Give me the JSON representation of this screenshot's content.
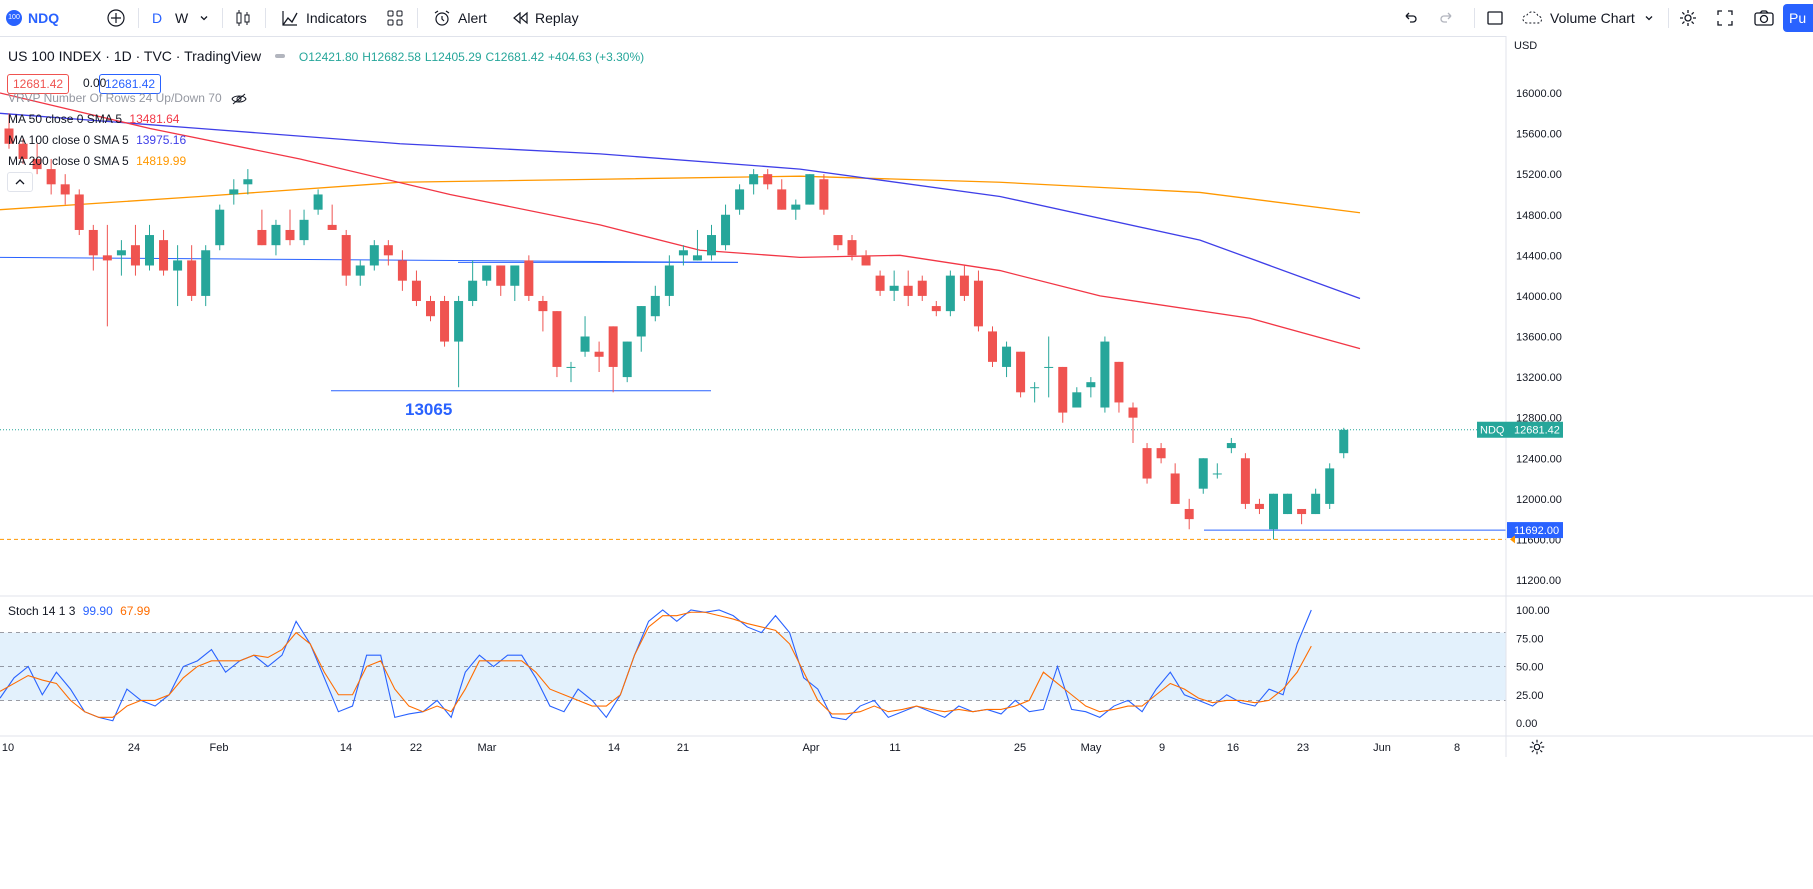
{
  "toolbar": {
    "symbol": "NDQ",
    "symbol_badge": "100",
    "intervals": [
      "D",
      "W"
    ],
    "indicators_label": "Indicators",
    "alert_label": "Alert",
    "replay_label": "Replay",
    "volume_chart_label": "Volume Chart",
    "publish_label": "Pu"
  },
  "legend": {
    "title": "US 100 INDEX · 1D · TVC · TradingView",
    "open": "O12421.80",
    "high": "H12682.58",
    "low": "L12405.29",
    "close": "C12681.42",
    "change": "+404.63 (+3.30%)",
    "bid": "12681.42",
    "spread": "0.00",
    "ask": "12681.42"
  },
  "indicators": {
    "vrvp": "VRVP Number Of Rows 24 Up/Down 70",
    "ma50": {
      "label": "MA 50 close 0 SMA 5",
      "value": "13481.64",
      "color": "#f23645"
    },
    "ma100": {
      "label": "MA 100 close 0 SMA 5",
      "value": "13975.16",
      "color": "#3f3fe8"
    },
    "ma200": {
      "label": "MA 200 close 0 SMA 5",
      "value": "14819.99",
      "color": "#ff9800"
    },
    "stoch": {
      "label": "Stoch 14 1 3",
      "k": "99.90",
      "d": "67.99",
      "k_color": "#2962ff",
      "d_color": "#ff6d00"
    }
  },
  "price_axis": {
    "currency": "USD",
    "ticks": [
      "16000.00",
      "15600.00",
      "15200.00",
      "14800.00",
      "14400.00",
      "14000.00",
      "13600.00",
      "13200.00",
      "12800.00",
      "12400.00",
      "12000.00",
      "11600.00",
      "11200.00"
    ],
    "last_label": "NDQ",
    "last_value": "12681.42",
    "line_value": "11692.00"
  },
  "stoch_axis": {
    "ticks": [
      "100.00",
      "75.00",
      "50.00",
      "25.00",
      "0.00"
    ]
  },
  "time_axis": {
    "ticks": [
      "10",
      "24",
      "Feb",
      "14",
      "22",
      "Mar",
      "14",
      "21",
      "Apr",
      "11",
      "25",
      "May",
      "9",
      "16",
      "23",
      "Jun",
      "8"
    ]
  },
  "annotations": {
    "support_label": "13065"
  },
  "colors": {
    "up": "#26a69a",
    "down": "#ef5350",
    "hline": "#2962ff",
    "accent": "#2962ff"
  }
}
